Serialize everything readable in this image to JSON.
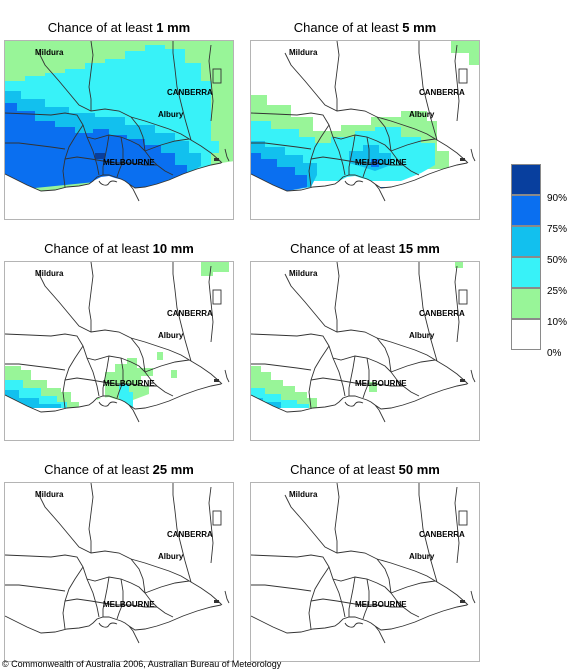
{
  "title_prefix": "Chance of at least",
  "unit": "mm",
  "panels": [
    {
      "amount": "1"
    },
    {
      "amount": "5"
    },
    {
      "amount": "10"
    },
    {
      "amount": "15"
    },
    {
      "amount": "25"
    },
    {
      "amount": "50"
    }
  ],
  "places": {
    "mildura": "Mildura",
    "canberra": "CANBERRA",
    "albury": "Albury",
    "melbourne": "MELBOURNE"
  },
  "legend": {
    "labels": [
      "90%",
      "75%",
      "50%",
      "25%",
      "10%",
      "0%"
    ],
    "colors": [
      "#083f9e",
      "#0a6ff0",
      "#12c0ee",
      "#38f2f8",
      "#98f598",
      "#ffffff"
    ]
  },
  "footer": "© Commonwealth of Australia 2006, Australian Bureau of Meteorology"
}
